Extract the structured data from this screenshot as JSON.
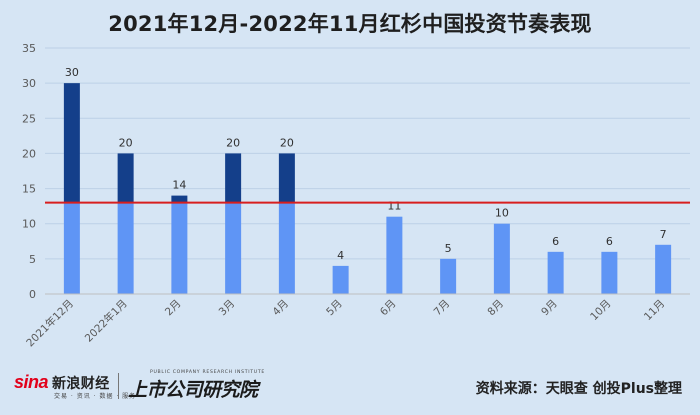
{
  "title": "2021年12月-2022年11月红杉中国投资节奏表现",
  "source": "资料来源：天眼查 创投Plus整理",
  "logos": {
    "sina_word": "sina",
    "sina_cn": "新浪财经",
    "sina_sub": "交易 · 资讯 · 数据 · 服务",
    "research_small": "PUBLIC COMPANY RESEARCH INSTITUTE",
    "research_main": "上市公司研究院"
  },
  "colors": {
    "background": "#d6e5f4",
    "bar_light": "#5f95f5",
    "bar_dark": "#143f8a",
    "reference_line": "#d81e1e",
    "grid": "#bcd0e6",
    "axis_text": "#595959"
  },
  "chart_data": {
    "type": "bar",
    "title": "2021年12月-2022年11月红杉中国投资节奏表现",
    "categories": [
      "2021年12月",
      "2022年1月",
      "2月",
      "3月",
      "4月",
      "5月",
      "6月",
      "7月",
      "8月",
      "9月",
      "10月",
      "11月"
    ],
    "values": [
      30,
      20,
      14,
      20,
      20,
      4,
      11,
      5,
      10,
      6,
      6,
      7
    ],
    "data_labels": [
      "30",
      "20",
      "14",
      "20",
      "20",
      "4",
      "11",
      "5",
      "10",
      "6",
      "6",
      "7"
    ],
    "reference_line": {
      "value": 13,
      "label": ""
    },
    "ylim": [
      0,
      35
    ],
    "yticks": [
      0,
      5,
      10,
      15,
      20,
      25,
      30,
      35
    ],
    "xlabel": "",
    "ylabel": "",
    "grid": true,
    "legend": "none"
  }
}
